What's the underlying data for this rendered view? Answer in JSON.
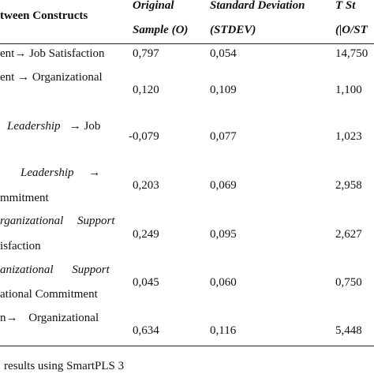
{
  "header": {
    "relation": "tween Constructs",
    "original_line1": "Original",
    "original_line2": "Sample (O)",
    "stdev_line1": "Standard Deviation",
    "stdev_line2": "(STDEV)",
    "t_line1": "T St",
    "t_line2": "(|O/ST"
  },
  "rows": [
    {
      "line1": "ent→ Job Satisfaction",
      "line2": "",
      "original": "0,797",
      "stdev": "0,054",
      "t": "14,750"
    },
    {
      "line1": "ent → Organizational",
      "line2": "",
      "original": "0,120",
      "stdev": "0,109",
      "t": "1,100"
    },
    {
      "line1_italic": "Leadership",
      "line1_rest": "→ Job",
      "line2": "",
      "original": "-0,079",
      "stdev": "0,077",
      "t": "1,023"
    },
    {
      "line1_italic": "Leadership",
      "line1_rest": "→",
      "line2": "mmitment",
      "original": "0,203",
      "stdev": "0,069",
      "t": "2,958"
    },
    {
      "line1": "rganizational Support",
      "line2": "isfaction",
      "original": "0,249",
      "stdev": "0,095",
      "t": "2,627"
    },
    {
      "line1": "anizational Support",
      "line2": "ational Commitment",
      "original": "0,045",
      "stdev": "0,060",
      "t": "0,750"
    },
    {
      "line1": "n→ Organizational",
      "line2": "",
      "original": "0,634",
      "stdev": "0,116",
      "t": "5,448"
    }
  ],
  "footer": {
    "note": "results using SmartPLS 3"
  }
}
